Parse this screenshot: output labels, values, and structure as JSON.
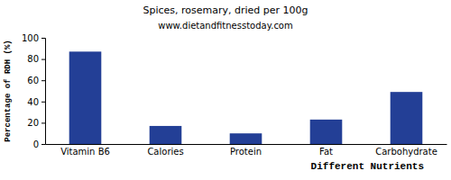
{
  "chart_data": {
    "type": "bar",
    "title": "Spices, rosemary, dried per 100g",
    "subtitle": "www.dietandfitnesstoday.com",
    "x_label": "Different Nutrients",
    "y_label": "Percentage of RDH (%)",
    "categories": [
      "Vitamin B6",
      "Calories",
      "Protein",
      "Fat",
      "Carbohydrate"
    ],
    "values": [
      87,
      17,
      10,
      23,
      49
    ],
    "color": "#233f96",
    "ylim": [
      0,
      100
    ],
    "yticks": [
      0,
      20,
      40,
      60,
      80,
      100
    ],
    "grid": false
  }
}
